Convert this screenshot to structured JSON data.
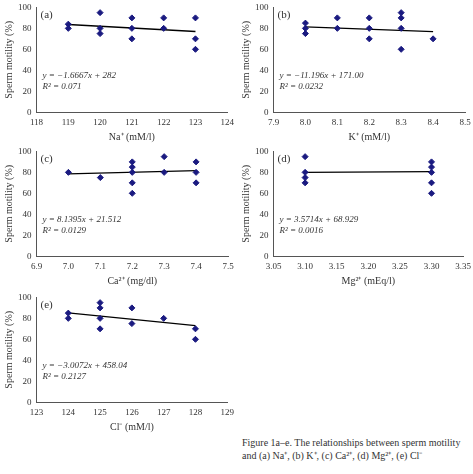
{
  "chart_data": [
    {
      "type": "scatter",
      "title": "(a)",
      "x_label": "Na⁺ (mM/l)",
      "y_label": "Sperm motility (%)",
      "xlim": [
        118,
        124
      ],
      "xticks": [
        118,
        119,
        120,
        121,
        122,
        123,
        124
      ],
      "ylim": [
        0,
        100
      ],
      "yticks": [
        0,
        20,
        40,
        60,
        80,
        100
      ],
      "grid": false,
      "series": [
        {
          "type": "scatter",
          "marker": "diamond",
          "color": "#1a1a80",
          "x": [
            119,
            119,
            120,
            120,
            120,
            121,
            121,
            121,
            122,
            122,
            123,
            123,
            123
          ],
          "values": [
            84,
            80,
            95,
            80,
            75,
            90,
            80,
            70,
            90,
            80,
            90,
            70,
            60
          ]
        },
        {
          "type": "line",
          "line_style": "solid",
          "color": "#000000",
          "x": [
            119,
            123
          ],
          "values": [
            83.67,
            76.99
          ]
        }
      ],
      "annotations": [
        "y = −1.6667x + 282",
        "R² = 0.071"
      ]
    },
    {
      "type": "scatter",
      "title": "(b)",
      "x_label": "K⁺ (mM/l)",
      "y_label": "Sperm motility (%)",
      "xlim": [
        7.9,
        8.5
      ],
      "xticks": [
        7.9,
        {
          "value": 8,
          "label": "8.0"
        },
        8.1,
        8.2,
        8.3,
        8.4,
        8.5
      ],
      "ylim": [
        0,
        100
      ],
      "yticks": [
        0,
        20,
        40,
        60,
        80,
        100
      ],
      "grid": false,
      "series": [
        {
          "type": "scatter",
          "marker": "diamond",
          "color": "#1a1a80",
          "x": [
            8.0,
            8.0,
            8.0,
            8.1,
            8.1,
            8.2,
            8.2,
            8.2,
            8.3,
            8.3,
            8.3,
            8.3,
            8.4
          ],
          "values": [
            85,
            80,
            75,
            90,
            80,
            90,
            80,
            70,
            95,
            90,
            80,
            60,
            70
          ]
        },
        {
          "type": "line",
          "line_style": "solid",
          "color": "#000000",
          "x": [
            8.0,
            8.4
          ],
          "values": [
            81.43,
            76.95
          ]
        }
      ],
      "annotations": [
        "y = −11.196x + 171.00",
        "R² = 0.0232"
      ]
    },
    {
      "type": "scatter",
      "title": "(c)",
      "x_label": "Ca²⁺ (mg/dl)",
      "y_label": "Sperm motility (%)",
      "xlim": [
        6.9,
        7.5
      ],
      "xticks": [
        6.9,
        {
          "value": 7,
          "label": "7.0"
        },
        7.1,
        7.2,
        7.3,
        7.4,
        7.5
      ],
      "ylim": [
        0,
        100
      ],
      "yticks": [
        0,
        20,
        40,
        60,
        80,
        100
      ],
      "grid": false,
      "series": [
        {
          "type": "scatter",
          "marker": "diamond",
          "color": "#1a1a80",
          "x": [
            7.0,
            7.1,
            7.2,
            7.2,
            7.2,
            7.2,
            7.2,
            7.3,
            7.3,
            7.4,
            7.4,
            7.4
          ],
          "values": [
            80,
            75,
            90,
            85,
            80,
            70,
            60,
            95,
            80,
            90,
            80,
            70
          ]
        },
        {
          "type": "line",
          "line_style": "solid",
          "color": "#000000",
          "x": [
            7.0,
            7.4
          ],
          "values": [
            78.49,
            81.74
          ]
        }
      ],
      "annotations": [
        "y = 8.1395x + 21.512",
        "R² = 0.0129"
      ]
    },
    {
      "type": "scatter",
      "title": "(d)",
      "x_label": "Mg²⁺ (mEq/l)",
      "y_label": "Sperm motility (%)",
      "xlim": [
        3.05,
        3.35
      ],
      "xticks": [
        3.05,
        {
          "value": 3.1,
          "label": "3.10"
        },
        3.15,
        {
          "value": 3.2,
          "label": "3.20"
        },
        3.25,
        {
          "value": 3.3,
          "label": "3.30"
        },
        3.35
      ],
      "ylim": [
        0,
        100
      ],
      "yticks": [
        0,
        20,
        40,
        60,
        80,
        100
      ],
      "grid": false,
      "series": [
        {
          "type": "scatter",
          "marker": "diamond",
          "color": "#1a1a80",
          "x": [
            3.1,
            3.1,
            3.1,
            3.1,
            3.3,
            3.3,
            3.3,
            3.3,
            3.3
          ],
          "values": [
            95,
            80,
            75,
            70,
            90,
            85,
            80,
            70,
            60
          ]
        },
        {
          "type": "line",
          "line_style": "solid",
          "color": "#000000",
          "x": [
            3.1,
            3.3
          ],
          "values": [
            80.0,
            80.71
          ]
        }
      ],
      "annotations": [
        "y = 3.5714x + 68.929",
        "R² = 0.0016"
      ]
    },
    {
      "type": "scatter",
      "title": "(e)",
      "x_label": "Cl⁻ (mM/l)",
      "y_label": "Sperm motility (%)",
      "xlim": [
        123,
        129
      ],
      "xticks": [
        123,
        124,
        125,
        126,
        127,
        128,
        129
      ],
      "ylim": [
        0,
        100
      ],
      "yticks": [
        0,
        20,
        40,
        60,
        80,
        100
      ],
      "grid": false,
      "series": [
        {
          "type": "scatter",
          "marker": "diamond",
          "color": "#1a1a80",
          "x": [
            124,
            124,
            125,
            125,
            125,
            125,
            126,
            126,
            127,
            128,
            128
          ],
          "values": [
            85,
            80,
            95,
            90,
            80,
            70,
            90,
            75,
            80,
            70,
            60
          ]
        },
        {
          "type": "line",
          "line_style": "solid",
          "color": "#000000",
          "x": [
            124,
            128
          ],
          "values": [
            85.15,
            73.12
          ]
        }
      ],
      "annotations": [
        "y = −3.0072x + 458.04",
        "R² = 0.2127"
      ]
    }
  ],
  "caption": "Figure 1a–e. The relationships between sperm motility and (a) Na⁺, (b) K⁺, (c) Ca²⁺, (d) Mg²⁺, (e) Cl⁻"
}
